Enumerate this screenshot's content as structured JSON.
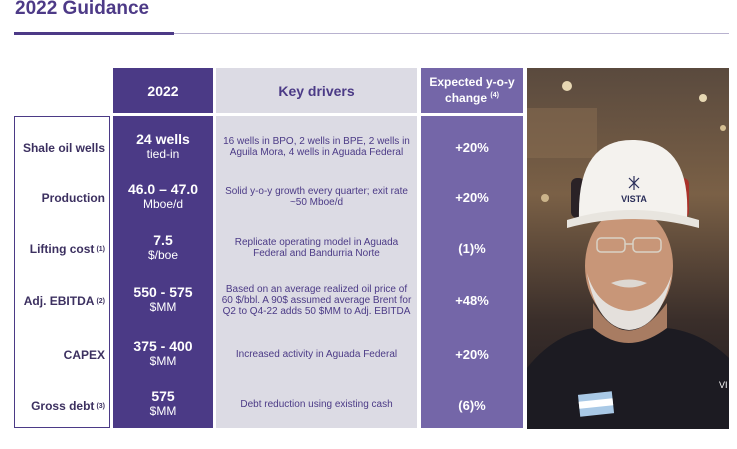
{
  "page": {
    "title": "2022 Guidance"
  },
  "header": {
    "year": "2022",
    "drivers": "Key drivers",
    "change_line1": "Expected y-o-y",
    "change_line2": "change",
    "change_note": "(4)"
  },
  "rows": [
    {
      "label": "Shale oil wells",
      "note": "",
      "value": "24 wells",
      "unit": "tied-in",
      "driver": "16 wells in BPO, 2 wells in BPE, 2 wells in Aguila Mora, 4 wells in Aguada Federal",
      "change": "+20%"
    },
    {
      "label": "Production",
      "note": "",
      "value": "46.0 – 47.0",
      "unit": "Mboe/d",
      "driver": "Solid y-o-y growth every quarter; exit rate ~50 Mboe/d",
      "change": "+20%"
    },
    {
      "label": "Lifting cost",
      "note": "(1)",
      "value": "7.5",
      "unit": "$/boe",
      "driver": "Replicate operating model in Aguada Federal and Bandurria Norte",
      "change": "(1)%"
    },
    {
      "label": "Adj. EBITDA",
      "note": "(2)",
      "value": "550 - 575",
      "unit": "$MM",
      "driver": "Based on an average realized oil price of 60 $/bbl. A 90$ assumed average Brent for Q2 to Q4-22 adds 50 $MM to Adj. EBITDA",
      "change": "+48%"
    },
    {
      "label": "CAPEX",
      "note": "",
      "value": "375 - 400",
      "unit": "$MM",
      "driver": "Increased activity in Aguada Federal",
      "change": "+20%"
    },
    {
      "label": "Gross debt",
      "note": "(3)",
      "value": "575",
      "unit": "$MM",
      "driver": "Debt reduction using existing cash",
      "change": "(6)%"
    }
  ],
  "photo": {
    "helmet_text": "VISTA",
    "shirt_text": "VI"
  },
  "colors": {
    "brand_purple": "#4b3a86",
    "light_purple": "#7466a8",
    "gray": "#dcdbe4"
  }
}
